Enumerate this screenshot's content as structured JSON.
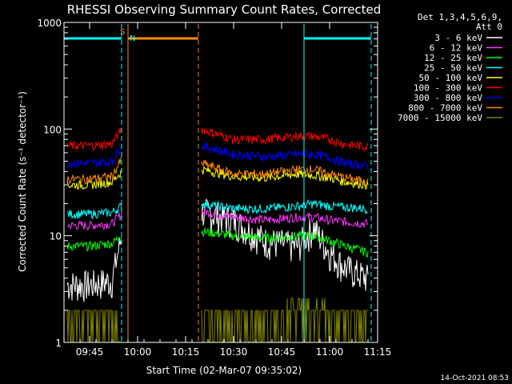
{
  "chart_data": {
    "type": "line",
    "title": "RHESSI Observing Summary Count Rates, Corrected",
    "xlabel": "Start Time (02-Mar-07 09:35:02)",
    "ylabel": "Corrected Count Rate (s⁻¹ detector⁻¹)",
    "y_scale": "log",
    "ylim": [
      1,
      1000
    ],
    "xlim": [
      "09:37",
      "11:15"
    ],
    "x_ticks": [
      "09:45",
      "10:00",
      "10:15",
      "10:30",
      "10:45",
      "11:00",
      "11:15"
    ],
    "y_ticks": [
      "1",
      "10",
      "100",
      "1000"
    ],
    "data_gap": [
      "09:57",
      "10:19"
    ],
    "legend_header": [
      "Det 1,3,4,5,6,9,",
      "Att 0"
    ],
    "series": [
      {
        "name": "3 - 6 keV",
        "color": "#ffffff",
        "x": [
          "09:38",
          "09:45",
          "09:52",
          "09:55",
          "10:20",
          "10:30",
          "10:40",
          "10:50",
          "10:55",
          "11:00",
          "11:05",
          "11:12"
        ],
        "values": [
          3.5,
          3.5,
          3.8,
          10,
          17,
          14,
          9,
          8,
          12,
          7,
          5,
          4
        ]
      },
      {
        "name": "6 - 12 keV",
        "color": "#ff33ff",
        "x": [
          "09:38",
          "09:45",
          "09:52",
          "09:55",
          "10:20",
          "10:30",
          "10:40",
          "10:50",
          "10:55",
          "11:00",
          "11:05",
          "11:12"
        ],
        "values": [
          12.5,
          12.5,
          13,
          16,
          17,
          15,
          14,
          15,
          15,
          14,
          13.5,
          13
        ]
      },
      {
        "name": "12 - 25 keV",
        "color": "#00ff00",
        "x": [
          "09:38",
          "09:45",
          "09:52",
          "09:55",
          "10:20",
          "10:30",
          "10:40",
          "10:50",
          "10:55",
          "11:00",
          "11:05",
          "11:12"
        ],
        "values": [
          8,
          8,
          8.5,
          10,
          11,
          10,
          9.5,
          10,
          10,
          9,
          8,
          7
        ]
      },
      {
        "name": "25 - 50 keV",
        "color": "#00ffff",
        "x": [
          "09:38",
          "09:45",
          "09:52",
          "09:55",
          "10:20",
          "10:30",
          "10:40",
          "10:50",
          "10:55",
          "11:00",
          "11:05",
          "11:12"
        ],
        "values": [
          16,
          16,
          16.5,
          19,
          20,
          18,
          18,
          19,
          20,
          19,
          18.5,
          18
        ]
      },
      {
        "name": "50 - 100 keV",
        "color": "#ffff00",
        "x": [
          "09:38",
          "09:45",
          "09:52",
          "09:55",
          "10:20",
          "10:30",
          "10:40",
          "10:50",
          "10:55",
          "11:00",
          "11:05",
          "11:12"
        ],
        "values": [
          30,
          30,
          32,
          40,
          42,
          36,
          35,
          38,
          37,
          35,
          32,
          30
        ]
      },
      {
        "name": "100 - 300 keV",
        "color": "#ff0000",
        "x": [
          "09:38",
          "09:45",
          "09:52",
          "09:55",
          "10:20",
          "10:30",
          "10:40",
          "10:50",
          "10:55",
          "11:00",
          "11:05",
          "11:12"
        ],
        "values": [
          70,
          70,
          73,
          100,
          100,
          80,
          80,
          86,
          86,
          80,
          72,
          68
        ]
      },
      {
        "name": "300 - 800 keV",
        "color": "#0000ff",
        "x": [
          "09:38",
          "09:45",
          "09:52",
          "09:55",
          "10:20",
          "10:30",
          "10:40",
          "10:50",
          "10:55",
          "11:00",
          "11:05",
          "11:12"
        ],
        "values": [
          48,
          48,
          50,
          70,
          70,
          58,
          55,
          58,
          58,
          54,
          48,
          45
        ]
      },
      {
        "name": "800 - 7000 keV",
        "color": "#ff8c00",
        "x": [
          "09:38",
          "09:45",
          "09:52",
          "09:55",
          "10:20",
          "10:30",
          "10:40",
          "10:50",
          "10:55",
          "11:00",
          "11:05",
          "11:12"
        ],
        "values": [
          34,
          34,
          36,
          52,
          48,
          38,
          38,
          42,
          42,
          38,
          35,
          32
        ]
      },
      {
        "name": "7000 - 15000 keV",
        "color": "#808000",
        "x": [
          "09:38",
          "09:45",
          "09:52",
          "09:55",
          "10:20",
          "10:30",
          "10:40",
          "10:50",
          "10:55",
          "11:00",
          "11:05",
          "11:12"
        ],
        "values": [
          2,
          2,
          2,
          2,
          2,
          2,
          2,
          2,
          2.5,
          2,
          2,
          2
        ]
      }
    ],
    "annotations": [
      {
        "label": "S",
        "x": "09:57",
        "color": "#ff8c00"
      },
      {
        "label": "N",
        "x": "09:57",
        "color": "#00ffff"
      }
    ],
    "flag_bars": [
      {
        "color": "#00ffff",
        "x_start": "09:37",
        "x_end": "09:55"
      },
      {
        "color": "#ff8c00",
        "x_start": "09:57",
        "x_end": "10:19"
      },
      {
        "color": "#00ffff",
        "x_start": "10:52",
        "x_end": "11:13"
      }
    ],
    "vertical_markers": [
      {
        "x": "09:55",
        "color": "#00ffff",
        "style": "dashed"
      },
      {
        "x": "09:57",
        "color": "#ff8c00",
        "style": "solid"
      },
      {
        "x": "10:19",
        "color": "#ff8c00",
        "style": "dashed"
      },
      {
        "x": "10:52",
        "color": "#00ffff",
        "style": "solid"
      },
      {
        "x": "11:13",
        "color": "#00ffff",
        "style": "dashed"
      }
    ],
    "grid": false,
    "legend_position": "right"
  },
  "footer": {
    "timestamp": "14-Oct-2021 08:53"
  }
}
